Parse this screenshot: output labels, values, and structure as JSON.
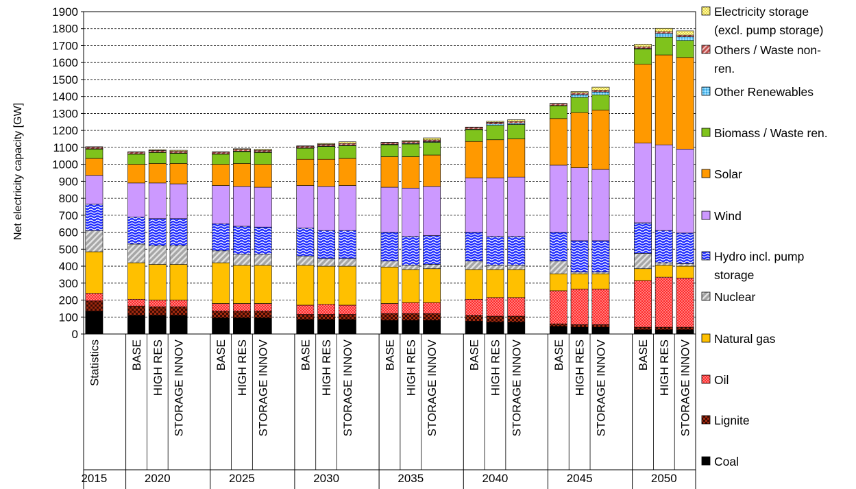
{
  "chart_data": {
    "type": "bar",
    "stacked": true,
    "ylabel": "Net electricity capacity  [GW]",
    "ylim": [
      0,
      1900
    ],
    "ytick_step": 100,
    "grid": "horizontal-dashed",
    "legend_position": "right",
    "groups": [
      {
        "label": "2015",
        "categories": [
          "Statistics"
        ]
      },
      {
        "label": "2020",
        "categories": [
          "BASE",
          "HIGH RES",
          "STORAGE INNOV"
        ]
      },
      {
        "label": "2025",
        "categories": [
          "BASE",
          "HIGH RES",
          "STORAGE INNOV"
        ]
      },
      {
        "label": "2030",
        "categories": [
          "BASE",
          "HIGH RES",
          "STORAGE INNOV"
        ]
      },
      {
        "label": "2035",
        "categories": [
          "BASE",
          "HIGH RES",
          "STORAGE INNOV"
        ]
      },
      {
        "label": "2040",
        "categories": [
          "BASE",
          "HIGH RES",
          "STORAGE INNOV"
        ]
      },
      {
        "label": "2045",
        "categories": [
          "BASE",
          "HIGH RES",
          "STORAGE INNOV"
        ]
      },
      {
        "label": "2050",
        "categories": [
          "BASE",
          "HIGH RES",
          "STORAGE INNOV"
        ]
      }
    ],
    "series": [
      {
        "name": "Coal",
        "color": "#000000",
        "pattern": "solid",
        "values": [
          135,
          110,
          110,
          110,
          95,
          95,
          95,
          85,
          85,
          85,
          80,
          80,
          80,
          75,
          70,
          70,
          45,
          40,
          40,
          25,
          25,
          25
        ]
      },
      {
        "name": "Lignite",
        "color": "#a12a0f",
        "pattern": "checker",
        "values": [
          60,
          55,
          50,
          50,
          40,
          40,
          40,
          30,
          30,
          30,
          40,
          40,
          40,
          35,
          35,
          35,
          15,
          15,
          15,
          15,
          15,
          15
        ]
      },
      {
        "name": "Oil",
        "color": "#ff2020",
        "pattern": "dots",
        "values": [
          45,
          40,
          40,
          40,
          45,
          45,
          45,
          55,
          60,
          55,
          60,
          65,
          65,
          95,
          110,
          110,
          195,
          210,
          210,
          275,
          295,
          290
        ]
      },
      {
        "name": "Natural gas",
        "color": "#ffc000",
        "pattern": "solid",
        "values": [
          245,
          215,
          210,
          210,
          240,
          225,
          225,
          235,
          225,
          230,
          215,
          195,
          200,
          175,
          165,
          165,
          100,
          90,
          90,
          70,
          70,
          70
        ]
      },
      {
        "name": "Nuclear",
        "color": "#a6a6a6",
        "pattern": "diag",
        "values": [
          125,
          110,
          110,
          110,
          70,
          65,
          65,
          55,
          45,
          45,
          35,
          25,
          25,
          50,
          25,
          25,
          75,
          10,
          10,
          90,
          15,
          15
        ]
      },
      {
        "name": "Hydro incl. pump storage",
        "color": "#1f2bff",
        "pattern": "wave",
        "values": [
          155,
          160,
          160,
          160,
          160,
          165,
          160,
          165,
          165,
          165,
          170,
          170,
          170,
          170,
          170,
          170,
          170,
          185,
          185,
          180,
          190,
          180
        ]
      },
      {
        "name": "Wind",
        "color": "#cc99ff",
        "pattern": "solid",
        "values": [
          170,
          200,
          210,
          205,
          225,
          235,
          235,
          250,
          260,
          265,
          265,
          285,
          290,
          320,
          345,
          350,
          395,
          430,
          420,
          470,
          505,
          495
        ]
      },
      {
        "name": "Solar",
        "color": "#ff9900",
        "pattern": "solid",
        "values": [
          100,
          110,
          115,
          120,
          125,
          135,
          135,
          155,
          160,
          160,
          180,
          185,
          185,
          215,
          225,
          225,
          275,
          325,
          350,
          465,
          530,
          540
        ]
      },
      {
        "name": "Biomass / Waste ren.",
        "color": "#7fc31c",
        "pattern": "solid",
        "values": [
          55,
          60,
          65,
          60,
          60,
          70,
          70,
          65,
          75,
          75,
          70,
          75,
          75,
          70,
          85,
          85,
          75,
          90,
          90,
          90,
          105,
          100
        ]
      },
      {
        "name": "Other Renewables",
        "color": "#66ccff",
        "pattern": "dots",
        "values": [
          2,
          2,
          2,
          2,
          2,
          3,
          3,
          2,
          3,
          3,
          3,
          4,
          4,
          3,
          8,
          8,
          2,
          16,
          17,
          3,
          22,
          22
        ]
      },
      {
        "name": "Others / Waste non-ren.",
        "color": "#c0504d",
        "pattern": "diag",
        "values": [
          10,
          10,
          10,
          10,
          10,
          10,
          10,
          10,
          10,
          10,
          10,
          10,
          10,
          10,
          10,
          10,
          10,
          10,
          10,
          10,
          10,
          10
        ]
      },
      {
        "name": "Electricity storage (excl. pump storage)",
        "color": "#ffff99",
        "pattern": "dots",
        "values": [
          2,
          2,
          4,
          6,
          2,
          4,
          6,
          2,
          5,
          10,
          2,
          6,
          12,
          2,
          6,
          10,
          2,
          8,
          18,
          15,
          20,
          25
        ]
      }
    ],
    "legend_lines": [
      {
        "series": 11,
        "lines": [
          "Electricity storage",
          "(excl. pump storage)"
        ]
      },
      {
        "series": 10,
        "lines": [
          "Others / Waste non-",
          "ren."
        ]
      },
      {
        "series": 9,
        "lines": [
          "Other Renewables"
        ]
      },
      {
        "series": 8,
        "lines": [
          "Biomass / Waste ren."
        ]
      },
      {
        "series": 7,
        "lines": [
          "Solar"
        ]
      },
      {
        "series": 6,
        "lines": [
          "Wind"
        ]
      },
      {
        "series": 5,
        "lines": [
          "Hydro incl. pump",
          "storage"
        ]
      },
      {
        "series": 4,
        "lines": [
          "Nuclear"
        ]
      },
      {
        "series": 3,
        "lines": [
          "Natural gas"
        ]
      },
      {
        "series": 2,
        "lines": [
          "Oil"
        ]
      },
      {
        "series": 1,
        "lines": [
          "Lignite"
        ]
      },
      {
        "series": 0,
        "lines": [
          "Coal"
        ]
      }
    ]
  }
}
